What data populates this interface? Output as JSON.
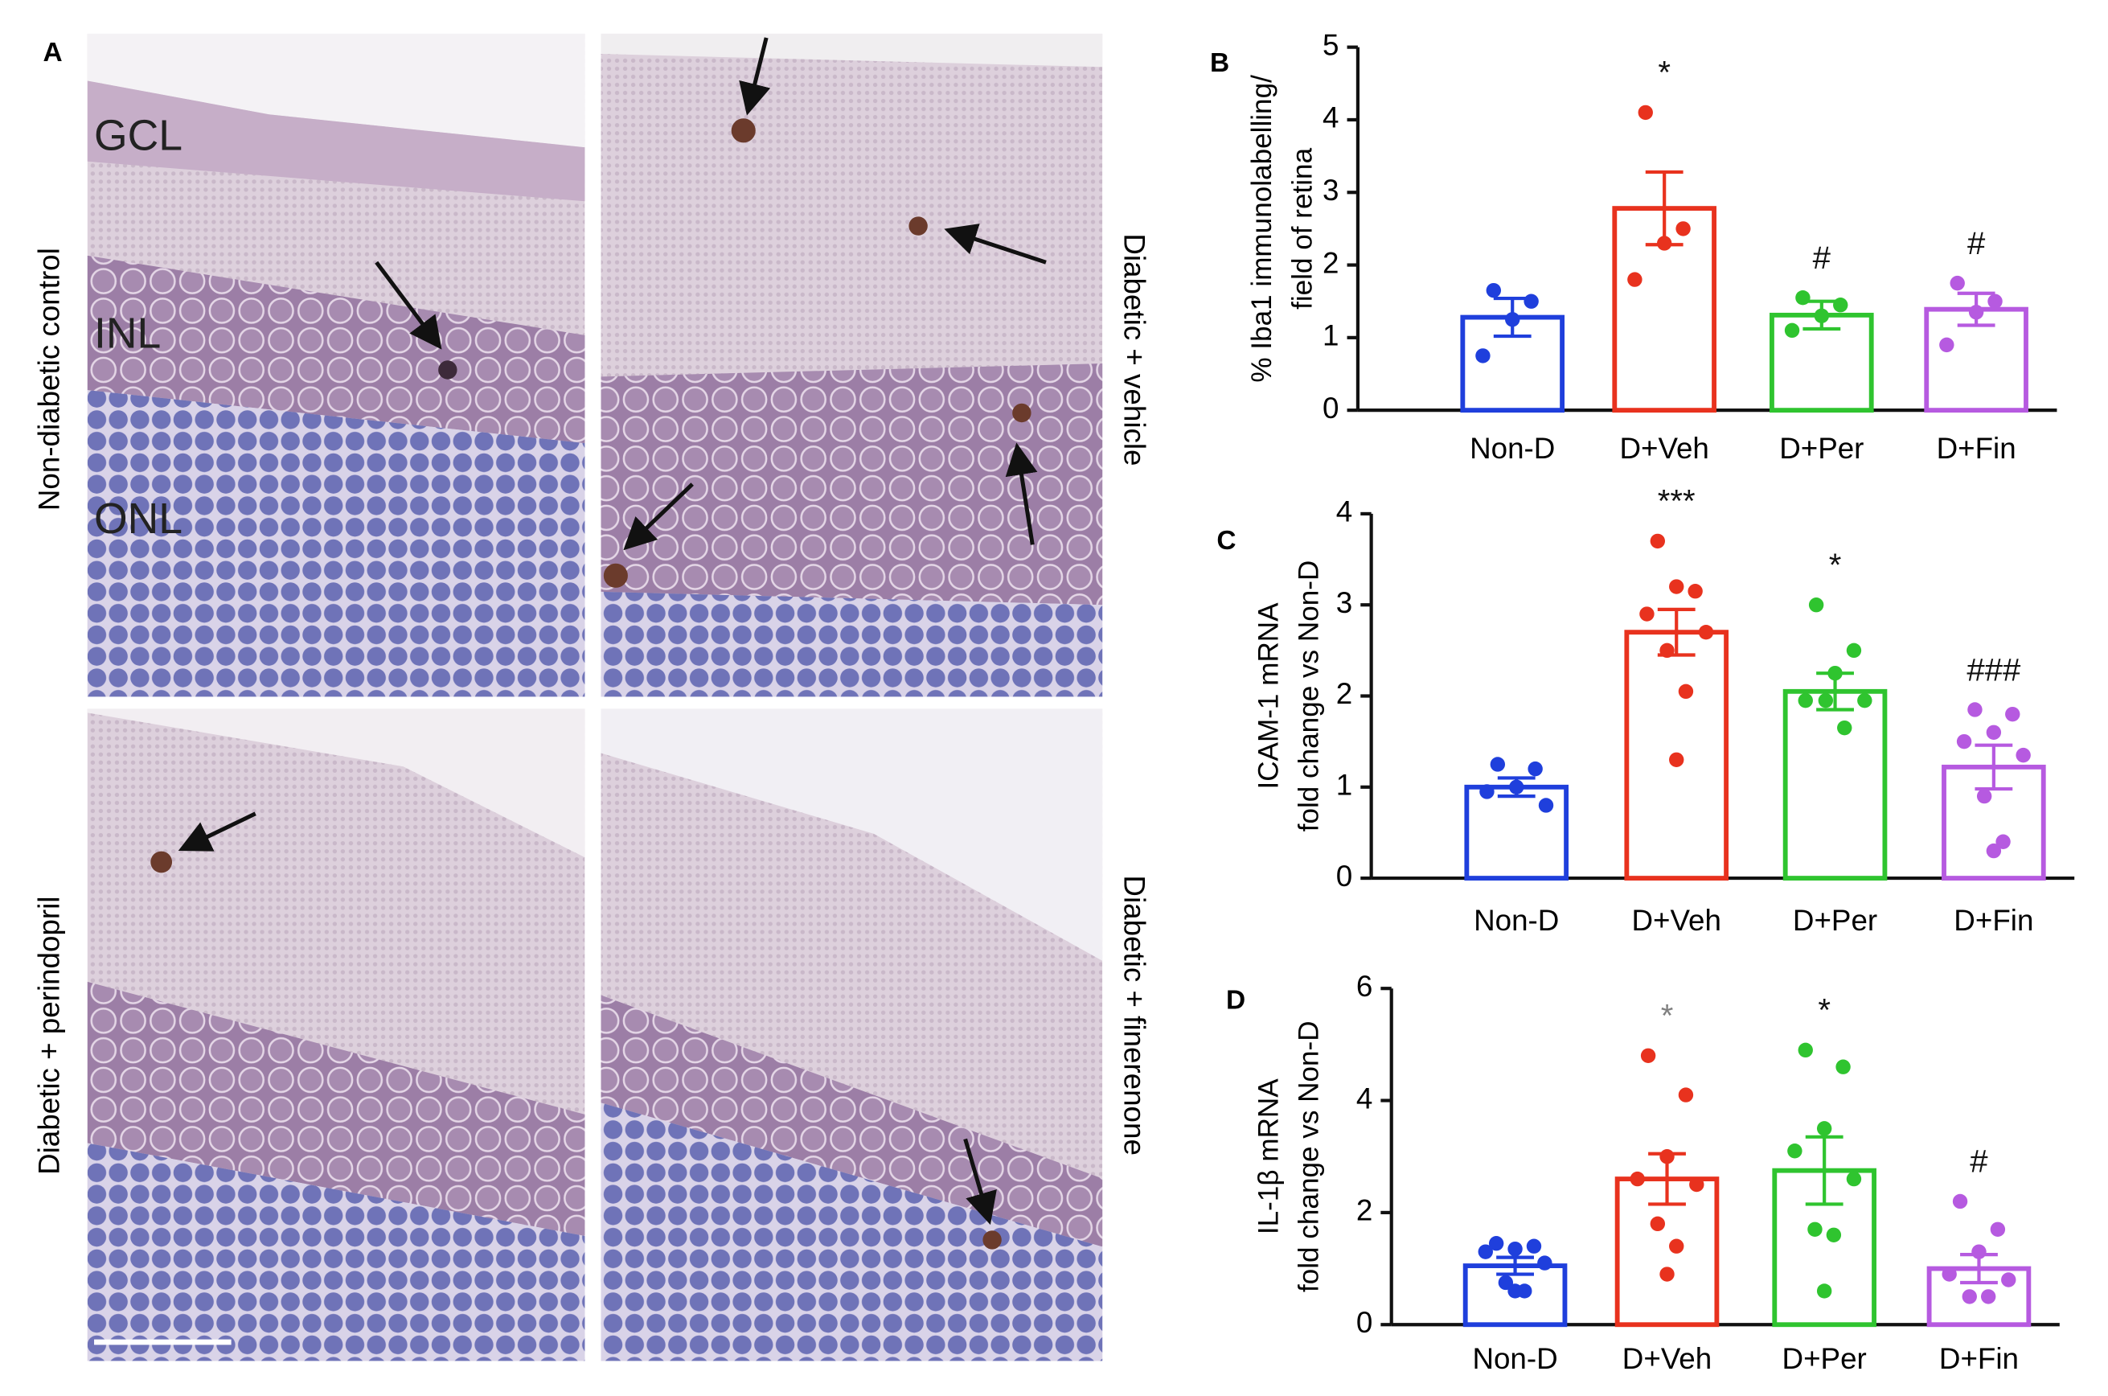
{
  "panel_a": {
    "letter": "A",
    "layers": [
      "GCL",
      "INL",
      "ONL"
    ],
    "captions": [
      "Non-diabetic control",
      "Diabetic + vehicle",
      "Diabetic + perindopril",
      "Diabetic + finerenone"
    ]
  },
  "chart_data": [
    {
      "type": "bar",
      "panel": "B",
      "ylabel": [
        "% Iba1 immunolabelling/",
        "field of retina"
      ],
      "categories": [
        "Non-D",
        "D+Veh",
        "D+Per",
        "D+Fin"
      ],
      "colors": [
        "#1f3fdc",
        "#e8321e",
        "#2fc42f",
        "#b65ae0"
      ],
      "values": [
        1.28,
        2.78,
        1.31,
        1.39
      ],
      "errors": [
        0.26,
        0.5,
        0.19,
        0.22
      ],
      "points": [
        [
          1.65,
          1.5,
          1.25,
          0.75
        ],
        [
          4.1,
          2.5,
          2.3,
          1.8
        ],
        [
          1.55,
          1.45,
          1.3,
          1.1
        ],
        [
          1.75,
          1.5,
          1.35,
          0.9
        ]
      ],
      "annotations": [
        null,
        "*",
        "#",
        "#"
      ],
      "annotation_colors": [
        null,
        "#111111",
        "#111111",
        "#111111"
      ],
      "ylim": [
        0,
        5
      ],
      "yticks": [
        0,
        1,
        2,
        3,
        4,
        5
      ]
    },
    {
      "type": "bar",
      "panel": "C",
      "ylabel": [
        "ICAM-1 mRNA",
        "fold change vs Non-D"
      ],
      "categories": [
        "Non-D",
        "D+Veh",
        "D+Per",
        "D+Fin"
      ],
      "colors": [
        "#1f3fdc",
        "#e8321e",
        "#2fc42f",
        "#b65ae0"
      ],
      "values": [
        1.0,
        2.7,
        2.05,
        1.22
      ],
      "errors": [
        0.1,
        0.25,
        0.2,
        0.24
      ],
      "points": [
        [
          1.25,
          1.2,
          1.0,
          0.95,
          0.8
        ],
        [
          3.7,
          3.15,
          3.2,
          2.9,
          2.7,
          2.5,
          2.05,
          1.3
        ],
        [
          3.0,
          2.5,
          2.25,
          1.95,
          1.95,
          1.95,
          1.65
        ],
        [
          1.85,
          1.8,
          1.6,
          1.5,
          1.35,
          0.9,
          0.4,
          0.3
        ]
      ],
      "annotations": [
        null,
        "***",
        "*",
        "###"
      ],
      "annotation_colors": [
        null,
        "#111111",
        "#111111",
        "#111111"
      ],
      "ylim": [
        0,
        4
      ],
      "yticks": [
        0,
        1,
        2,
        3,
        4
      ]
    },
    {
      "type": "bar",
      "panel": "D",
      "ylabel": [
        "IL-1β mRNA",
        "fold change vs Non-D"
      ],
      "categories": [
        "Non-D",
        "D+Veh",
        "D+Per",
        "D+Fin"
      ],
      "colors": [
        "#1f3fdc",
        "#e8321e",
        "#2fc42f",
        "#b65ae0"
      ],
      "values": [
        1.05,
        2.6,
        2.75,
        1.0
      ],
      "errors": [
        0.15,
        0.45,
        0.6,
        0.25
      ],
      "points": [
        [
          1.45,
          1.4,
          1.35,
          1.3,
          1.1,
          0.75,
          0.6,
          0.6
        ],
        [
          4.8,
          4.1,
          3.0,
          2.6,
          2.5,
          1.8,
          1.4,
          0.9
        ],
        [
          4.9,
          4.6,
          3.5,
          3.1,
          2.6,
          1.7,
          1.6,
          0.6
        ],
        [
          2.2,
          1.7,
          1.3,
          0.9,
          0.8,
          0.5,
          0.5
        ]
      ],
      "annotations": [
        null,
        "*",
        "*",
        "#"
      ],
      "annotation_colors": [
        null,
        "#808080",
        "#111111",
        "#111111"
      ],
      "ylim": [
        0,
        6
      ],
      "yticks": [
        0,
        2,
        4,
        6
      ]
    }
  ]
}
